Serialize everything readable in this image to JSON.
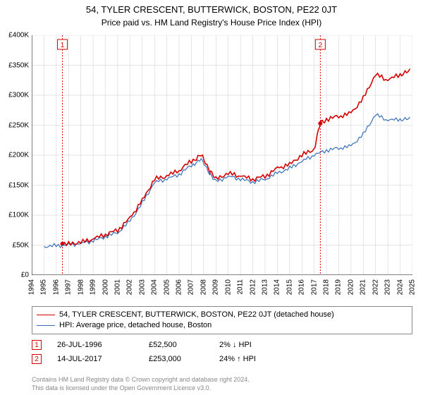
{
  "title": "54, TYLER CRESCENT, BUTTERWICK, BOSTON, PE22 0JT",
  "subtitle": "Price paid vs. HM Land Registry's House Price Index (HPI)",
  "chart": {
    "type": "line",
    "ylim": [
      0,
      400
    ],
    "ytick_step": 50,
    "yprefix": "£",
    "ysuffix": "K",
    "xyears": [
      1994,
      1995,
      1996,
      1997,
      1998,
      1999,
      2000,
      2001,
      2002,
      2003,
      2004,
      2005,
      2006,
      2007,
      2008,
      2009,
      2010,
      2011,
      2012,
      2013,
      2014,
      2015,
      2016,
      2017,
      2018,
      2019,
      2020,
      2021,
      2022,
      2023,
      2024,
      2025
    ],
    "grid_color": "#cccccc",
    "axis_color": "#000000",
    "background_color": "#ffffff",
    "series": [
      {
        "name": "price_paid",
        "label": "54, TYLER CRESCENT, BUTTERWICK, BOSTON, PE22 0JT (detached house)",
        "color": "#d40000",
        "width": 1.6,
        "x": [
          1996.5,
          1997,
          1998,
          1999,
          2000,
          2001,
          2002,
          2003,
          2004,
          2005,
          2006,
          2007,
          2007.8,
          2008.5,
          2009,
          2010,
          2011,
          2012,
          2013,
          2014,
          2015,
          2016,
          2017,
          2017.5,
          2018,
          2019,
          2020,
          2021,
          2022,
          2023,
          2024,
          2024.8
        ],
        "y": [
          52,
          52,
          55,
          60,
          68,
          75,
          95,
          125,
          160,
          165,
          175,
          190,
          200,
          175,
          160,
          170,
          165,
          160,
          165,
          178,
          185,
          200,
          210,
          253,
          260,
          265,
          270,
          295,
          335,
          325,
          335,
          340
        ]
      },
      {
        "name": "hpi",
        "label": "HPI: Average price, detached house, Boston",
        "color": "#3a6fb7",
        "width": 1.2,
        "x": [
          1995,
          1996,
          1997,
          1998,
          1999,
          2000,
          2001,
          2002,
          2003,
          2004,
          2005,
          2006,
          2007,
          2007.8,
          2008.5,
          2009,
          2010,
          2011,
          2012,
          2013,
          2014,
          2015,
          2016,
          2017,
          2018,
          2019,
          2020,
          2021,
          2022,
          2023,
          2024,
          2024.8
        ],
        "y": [
          48,
          49,
          50,
          53,
          57,
          64,
          71,
          90,
          120,
          155,
          160,
          168,
          183,
          193,
          170,
          155,
          165,
          160,
          155,
          160,
          170,
          178,
          190,
          200,
          208,
          212,
          215,
          235,
          268,
          258,
          260,
          260
        ]
      }
    ],
    "event_markers": [
      {
        "n": "1",
        "x": 1996.5,
        "y": 52,
        "color": "#d40000",
        "line_style": "dotted"
      },
      {
        "n": "2",
        "x": 2017.5,
        "y": 253,
        "color": "#d40000",
        "line_style": "dotted"
      }
    ]
  },
  "legend": {
    "border_color": "#888888"
  },
  "events": [
    {
      "n": "1",
      "date": "26-JUL-1996",
      "price": "£52,500",
      "diff": "2% ↓ HPI",
      "color": "#d40000"
    },
    {
      "n": "2",
      "date": "14-JUL-2017",
      "price": "£253,000",
      "diff": "24% ↑ HPI",
      "color": "#d40000"
    }
  ],
  "footer": {
    "line1": "Contains HM Land Registry data © Crown copyright and database right 2024.",
    "line2": "This data is licensed under the Open Government Licence v3.0."
  }
}
